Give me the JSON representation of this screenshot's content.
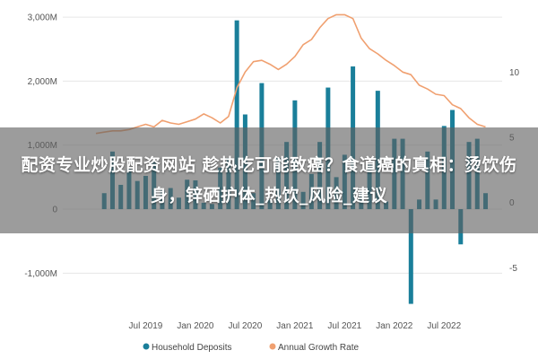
{
  "overlay": {
    "title": "配资专业炒股配资网站 趁热吃可能致癌？食道癌的真相：烫饮伤身，锌硒护体_热饮_风险_建议"
  },
  "chart_data": {
    "type": "bar+line",
    "title": "",
    "y_left": {
      "ylim": [
        -1500,
        3100
      ],
      "ticks": [
        3000,
        2000,
        1000,
        0,
        -1000
      ],
      "tick_labels": [
        "3,000M",
        "2,000M",
        "1,000M",
        "0",
        "-1,000M"
      ]
    },
    "y_right": {
      "ylim": [
        -7.86,
        14.7
      ],
      "ticks": [
        10,
        5,
        0,
        -5
      ],
      "tick_labels": [
        "10",
        "5",
        "0",
        "-5"
      ]
    },
    "x": {
      "tick_labels": [
        "Jul 2019",
        "Jan 2020",
        "Jul 2020",
        "Jan 2021",
        "Jul 2021",
        "Jan 2022",
        "Jul 2022"
      ],
      "tick_months": [
        6,
        12,
        18,
        24,
        30,
        36,
        42
      ],
      "month_range": [
        -4,
        49
      ]
    },
    "series": [
      {
        "name": "Household Deposits",
        "type": "bar",
        "color": "#1a7f9a",
        "months": [
          1,
          2,
          3,
          4,
          5,
          6,
          7,
          8,
          9,
          10,
          11,
          12,
          13,
          14,
          15,
          16,
          17,
          18,
          19,
          20,
          21,
          22,
          23,
          24,
          25,
          26,
          27,
          28,
          29,
          30,
          31,
          32,
          33,
          34,
          35,
          36,
          37,
          38,
          39,
          40,
          41,
          42,
          43,
          44,
          45,
          46,
          47
        ],
        "values": [
          250,
          900,
          380,
          630,
          440,
          520,
          750,
          300,
          330,
          180,
          460,
          450,
          100,
          80,
          650,
          800,
          2950,
          1480,
          250,
          1970,
          150,
          800,
          1050,
          1700,
          270,
          550,
          1050,
          1900,
          500,
          850,
          2230,
          280,
          700,
          1850,
          120,
          1100,
          1100,
          -1480,
          150,
          900,
          150,
          1300,
          1550,
          -550,
          1050,
          1100,
          250
        ]
      },
      {
        "name": "Annual Growth Rate",
        "type": "line",
        "color": "#f0a070",
        "months": [
          0,
          1,
          2,
          3,
          4,
          5,
          6,
          7,
          8,
          9,
          10,
          11,
          12,
          13,
          14,
          15,
          16,
          17,
          18,
          19,
          20,
          21,
          22,
          23,
          24,
          25,
          26,
          27,
          28,
          29,
          30,
          31,
          32,
          33,
          34,
          35,
          36,
          37,
          38,
          39,
          40,
          41,
          42,
          43,
          44,
          45,
          46,
          47
        ],
        "values": [
          5.3,
          5.4,
          5.5,
          5.5,
          5.6,
          5.8,
          6.0,
          5.8,
          6.3,
          6.1,
          6.0,
          6.2,
          6.4,
          6.8,
          6.5,
          6.1,
          6.6,
          8.8,
          10.0,
          10.8,
          10.9,
          10.6,
          10.2,
          10.6,
          11.2,
          12.1,
          12.5,
          13.4,
          14.1,
          14.4,
          14.4,
          14.1,
          12.6,
          11.8,
          11.4,
          10.9,
          10.5,
          10.0,
          9.8,
          9.0,
          8.7,
          8.3,
          8.2,
          7.5,
          7.2,
          6.5,
          6.0,
          5.8
        ]
      }
    ],
    "legend": {
      "placement": "bottom",
      "entries": [
        "Household Deposits",
        "Annual Growth Rate"
      ]
    },
    "grid": {
      "horizontal": true
    }
  }
}
